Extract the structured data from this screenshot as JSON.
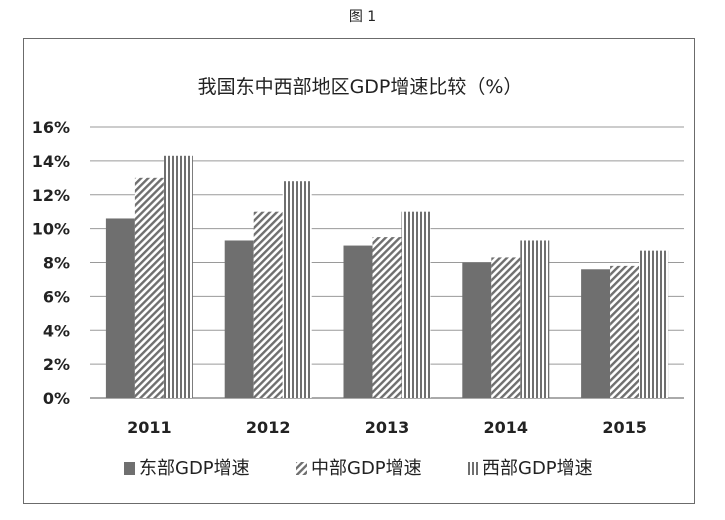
{
  "caption": "图 1",
  "chart_data": {
    "type": "bar",
    "title": "我国东中西部地区GDP增速比较（%）",
    "xlabel": "",
    "ylabel": "",
    "categories": [
      "2011",
      "2012",
      "2013",
      "2014",
      "2015"
    ],
    "series": [
      {
        "name": "东部GDP增速",
        "values": [
          10.6,
          9.3,
          9.0,
          8.0,
          7.6
        ],
        "pattern": "solid",
        "color": "#6f6f6f"
      },
      {
        "name": "中部GDP增速",
        "values": [
          13.0,
          11.0,
          9.5,
          8.3,
          7.8
        ],
        "pattern": "diagonal",
        "color": "#6f6f6f"
      },
      {
        "name": "西部GDP增速",
        "values": [
          14.3,
          12.8,
          11.0,
          9.3,
          8.7
        ],
        "pattern": "vertical",
        "color": "#6f6f6f"
      }
    ],
    "ylim": [
      0,
      16
    ],
    "yticks": [
      0,
      2,
      4,
      6,
      8,
      10,
      12,
      14,
      16
    ],
    "ytick_labels": [
      "0%",
      "2%",
      "4%",
      "6%",
      "8%",
      "10%",
      "12%",
      "14%",
      "16%"
    ],
    "grid": true,
    "legend_position": "bottom"
  }
}
